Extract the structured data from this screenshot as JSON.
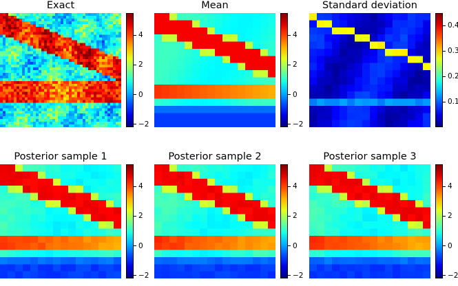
{
  "chart_data": [
    {
      "type": "heatmap",
      "title": "Exact",
      "kind": "exact",
      "colorbar": {
        "min": -2.2,
        "max": 5.5,
        "ticks": [
          -2,
          0,
          2,
          4
        ],
        "tick_labels": [
          "−2",
          "0",
          "2",
          "4"
        ]
      }
    },
    {
      "type": "heatmap",
      "title": "Mean",
      "kind": "mean",
      "colorbar": {
        "min": -2.2,
        "max": 5.5,
        "ticks": [
          -2,
          0,
          2,
          4
        ],
        "tick_labels": [
          "−2",
          "0",
          "2",
          "4"
        ]
      }
    },
    {
      "type": "heatmap",
      "title": "Standard deviation",
      "kind": "std",
      "colorbar": {
        "min": 0.0,
        "max": 0.45,
        "ticks": [
          0.1,
          0.2,
          0.3,
          0.4
        ],
        "tick_labels": [
          "0.1",
          "0.2",
          "0.3",
          "0.4"
        ]
      }
    },
    {
      "type": "heatmap",
      "title": "Posterior sample 1",
      "kind": "sample",
      "colorbar": {
        "min": -2.2,
        "max": 5.5,
        "ticks": [
          -2,
          0,
          2,
          4
        ],
        "tick_labels": [
          "−2",
          "0",
          "2",
          "4"
        ]
      }
    },
    {
      "type": "heatmap",
      "title": "Posterior sample 2",
      "kind": "sample",
      "colorbar": {
        "min": -2.2,
        "max": 5.5,
        "ticks": [
          -2,
          0,
          2,
          4
        ],
        "tick_labels": [
          "−2",
          "0",
          "2",
          "4"
        ]
      }
    },
    {
      "type": "heatmap",
      "title": "Posterior sample 3",
      "kind": "sample",
      "colorbar": {
        "min": -2.2,
        "max": 5.5,
        "ticks": [
          -2,
          0,
          2,
          4
        ],
        "tick_labels": [
          "−2",
          "0",
          "2",
          "4"
        ]
      }
    }
  ],
  "colormap": "jet"
}
